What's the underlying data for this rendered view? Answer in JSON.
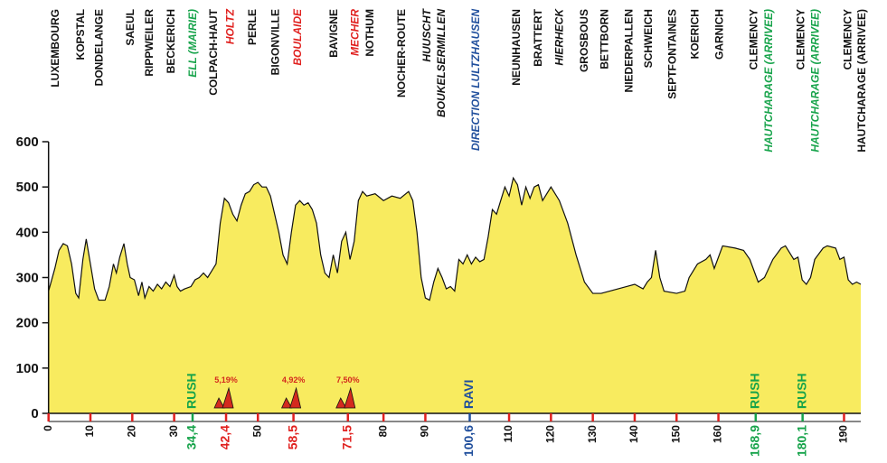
{
  "chart_data": {
    "type": "area",
    "area_color": "#f8eb5f",
    "xlim": [
      0,
      194
    ],
    "ylim": [
      0,
      600
    ],
    "yticks": [
      0,
      100,
      200,
      300,
      400,
      500,
      600
    ],
    "xticks": [
      0,
      10,
      20,
      30,
      {
        "value": 34.4,
        "label": "34,4",
        "color": "#16a34a"
      },
      {
        "value": 42.4,
        "label": "42,4",
        "color": "#e0201e"
      },
      50,
      {
        "value": 58.5,
        "label": "58,5",
        "color": "#e0201e"
      },
      {
        "value": 71.5,
        "label": "71,5",
        "color": "#e0201e"
      },
      80,
      90,
      {
        "value": 100.6,
        "label": "100,6",
        "color": "#1f4e9c"
      },
      110,
      120,
      130,
      140,
      150,
      160,
      {
        "value": 168.9,
        "label": "168,9",
        "color": "#16a34a"
      },
      {
        "value": 180.1,
        "label": "180,1",
        "color": "#16a34a"
      },
      190
    ],
    "x": [
      0,
      1.5,
      2.5,
      3.5,
      4.5,
      5.5,
      6.5,
      7.2,
      8.2,
      9,
      10,
      11,
      12,
      13.5,
      14.5,
      15.5,
      16.2,
      17,
      18,
      18.8,
      19.5,
      20.5,
      21.5,
      22.3,
      23,
      24,
      25,
      26,
      27,
      28,
      29,
      30,
      30.7,
      31.5,
      32.5,
      34,
      35,
      36,
      37,
      38,
      39,
      40,
      41,
      42,
      43,
      44,
      45,
      46,
      47,
      48,
      49,
      50,
      51,
      52,
      53,
      54,
      55,
      56,
      57,
      58,
      59,
      60,
      61,
      62,
      63,
      64,
      65,
      66,
      67,
      68,
      69,
      70,
      71,
      72,
      73,
      74,
      75,
      76,
      78,
      80,
      82,
      84,
      86,
      87,
      88,
      89,
      90,
      91,
      92,
      93,
      94,
      95,
      96,
      97,
      98,
      99,
      100,
      101,
      102,
      103,
      104,
      105,
      106,
      107,
      108,
      109,
      110,
      111,
      112,
      113,
      114,
      115,
      116,
      117,
      118,
      120,
      122,
      124,
      126,
      128,
      130,
      132,
      134,
      136,
      138,
      140,
      142,
      143,
      144,
      145,
      146,
      147,
      150,
      152,
      153,
      155,
      157,
      158,
      159,
      161,
      164,
      166,
      167.5,
      169.5,
      171,
      173,
      175,
      176,
      177,
      178,
      179,
      180,
      181,
      182,
      183,
      185,
      186,
      188,
      189,
      190,
      191,
      192,
      193,
      194
    ],
    "values": [
      270,
      320,
      360,
      375,
      370,
      330,
      265,
      255,
      340,
      385,
      330,
      275,
      250,
      250,
      280,
      330,
      310,
      345,
      375,
      330,
      300,
      295,
      260,
      290,
      255,
      280,
      270,
      285,
      275,
      290,
      280,
      305,
      280,
      270,
      275,
      280,
      295,
      300,
      310,
      300,
      315,
      330,
      420,
      475,
      465,
      440,
      425,
      460,
      485,
      490,
      505,
      510,
      500,
      500,
      480,
      440,
      400,
      350,
      330,
      400,
      460,
      470,
      460,
      465,
      450,
      420,
      350,
      310,
      300,
      350,
      310,
      380,
      400,
      340,
      380,
      470,
      490,
      480,
      485,
      470,
      480,
      475,
      490,
      470,
      400,
      300,
      255,
      250,
      290,
      320,
      300,
      275,
      280,
      270,
      340,
      330,
      350,
      330,
      345,
      335,
      340,
      390,
      450,
      440,
      470,
      500,
      480,
      520,
      505,
      460,
      500,
      475,
      500,
      505,
      470,
      500,
      470,
      420,
      350,
      290,
      265,
      265,
      270,
      275,
      280,
      285,
      275,
      290,
      300,
      360,
      300,
      270,
      265,
      270,
      300,
      330,
      340,
      350,
      320,
      370,
      365,
      360,
      340,
      290,
      300,
      340,
      365,
      370,
      355,
      340,
      345,
      295,
      285,
      300,
      340,
      365,
      370,
      365,
      340,
      345,
      295,
      285,
      290,
      285
    ],
    "places": [
      {
        "x": 1.8,
        "text": "LUXEMBOURG",
        "style": "plain"
      },
      {
        "x": 7.8,
        "text": "KOPSTAL",
        "style": "plain"
      },
      {
        "x": 12.2,
        "text": "DONDELANGE",
        "style": "plain"
      },
      {
        "x": 19.7,
        "text": "SAEUL",
        "style": "plain"
      },
      {
        "x": 24.2,
        "text": "RIPPWEILER",
        "style": "plain"
      },
      {
        "x": 29.4,
        "text": "BECKERICH",
        "style": "plain"
      },
      {
        "x": 34.6,
        "text": "ELL (MAIRIE)",
        "style": "green"
      },
      {
        "x": 39.6,
        "text": "COLPACH-HAUT",
        "style": "plain"
      },
      {
        "x": 43.5,
        "text": "HOLTZ",
        "style": "red"
      },
      {
        "x": 48.8,
        "text": "PERLE",
        "style": "plain"
      },
      {
        "x": 54.3,
        "text": "BIGONVILLE",
        "style": "plain"
      },
      {
        "x": 59.6,
        "text": "BOULAIDE",
        "style": "red"
      },
      {
        "x": 68.3,
        "text": "BAVIGNE",
        "style": "plain"
      },
      {
        "x": 73.3,
        "text": "MECHER",
        "style": "red"
      },
      {
        "x": 76.9,
        "text": "NOTHUM",
        "style": "plain"
      },
      {
        "x": 84.5,
        "text": "NOCHER-ROUTE",
        "style": "plain"
      },
      {
        "x": 90.5,
        "text": "HUUSCHT",
        "style": "italic"
      },
      {
        "x": 94.0,
        "text": "BOUKELSERMILLEN",
        "style": "italic"
      },
      {
        "x": 102.2,
        "text": "DIRECTION LULTZHAUSEN",
        "style": "blue"
      },
      {
        "x": 111.9,
        "text": "NEUNHAUSEN",
        "style": "plain"
      },
      {
        "x": 117.1,
        "text": "BRATTERT",
        "style": "plain"
      },
      {
        "x": 122.2,
        "text": "HIERHECK",
        "style": "italic"
      },
      {
        "x": 128.1,
        "text": "GROSBOUS",
        "style": "plain"
      },
      {
        "x": 133.0,
        "text": "BETTBORN",
        "style": "plain"
      },
      {
        "x": 138.8,
        "text": "NIEDERPALLEN",
        "style": "plain"
      },
      {
        "x": 143.4,
        "text": "SCHWEICH",
        "style": "plain"
      },
      {
        "x": 149.2,
        "text": "SEPTFONTAINES",
        "style": "plain"
      },
      {
        "x": 154.6,
        "text": "KOERICH",
        "style": "plain"
      },
      {
        "x": 160.4,
        "text": "GARNICH",
        "style": "plain"
      },
      {
        "x": 168.6,
        "text": "CLEMENCY",
        "style": "plain"
      },
      {
        "x": 172.1,
        "text": "HAUTCHARAGE (ARRIVEE)",
        "style": "green"
      },
      {
        "x": 179.8,
        "text": "CLEMENCY",
        "style": "plain"
      },
      {
        "x": 183.3,
        "text": "HAUTCHARAGE (ARRIVEE)",
        "style": "green"
      },
      {
        "x": 191.0,
        "text": "CLEMENCY",
        "style": "plain"
      },
      {
        "x": 194.4,
        "text": "HAUTCHARAGE (ARRIVEE)",
        "style": "plain"
      }
    ],
    "points": [
      {
        "km": 34.4,
        "text": "RUSH",
        "color": "#16a34a"
      },
      {
        "km": 100.6,
        "text": "RAVI",
        "color": "#1f4e9c"
      },
      {
        "km": 168.9,
        "text": "RUSH",
        "color": "#16a34a"
      },
      {
        "km": 180.1,
        "text": "RUSH",
        "color": "#16a34a"
      }
    ],
    "climbs": [
      {
        "km": 42.4,
        "grade": "5,19%"
      },
      {
        "km": 58.5,
        "grade": "4,92%"
      },
      {
        "km": 71.5,
        "grade": "7,50%"
      }
    ],
    "climb_color": "#d42a1e"
  }
}
